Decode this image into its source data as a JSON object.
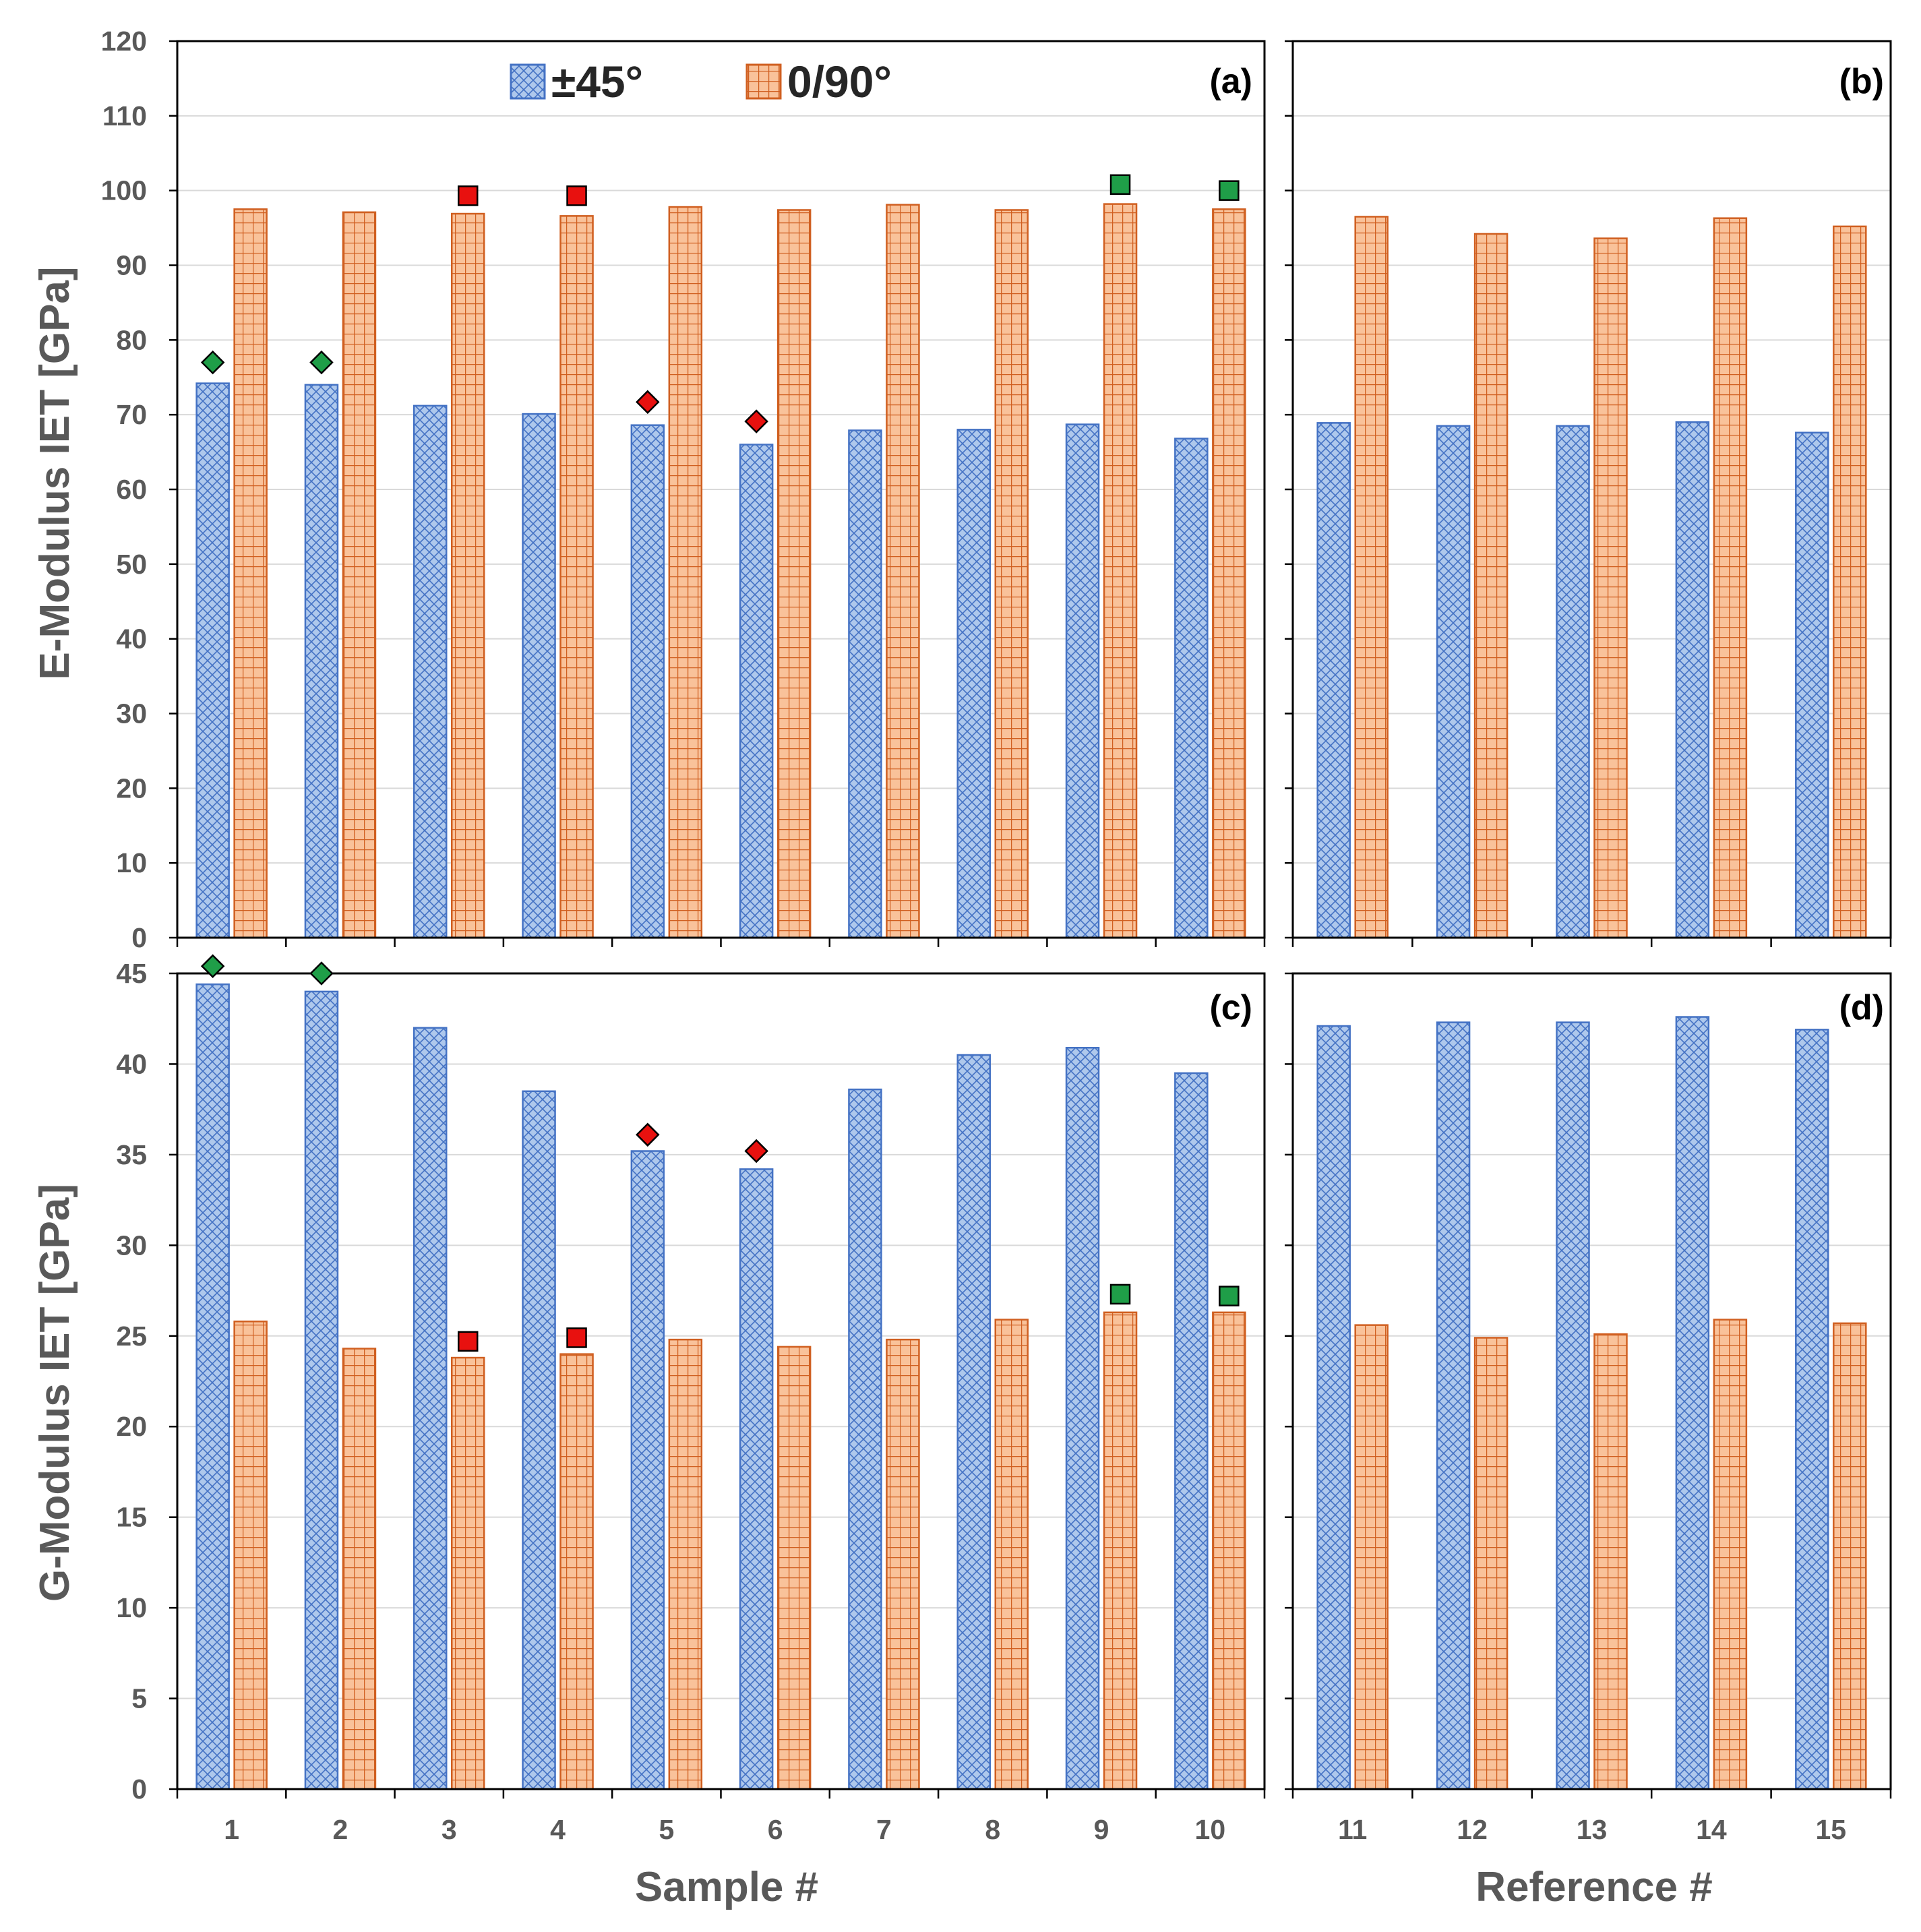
{
  "chart_data": {
    "type": "bar",
    "colors": {
      "pm45_fill": "#aec8ec",
      "pm45_hatch": "#4472c4",
      "p090_fill": "#f9c29a",
      "p090_hatch": "#d05f20",
      "grid": "#d9d9d9",
      "axis": "#000000",
      "marker_green": "#1f9e48",
      "marker_red": "#e8110f"
    },
    "legend": {
      "series_pm45": "±45°",
      "series_0_90": "0/90°",
      "position": "top-center of panel (a)"
    },
    "y_axes": {
      "top": {
        "title": "E-Modulus IET [GPa]",
        "ylim": [
          0,
          120
        ],
        "ticks": [
          "0",
          "10",
          "20",
          "30",
          "40",
          "50",
          "60",
          "70",
          "80",
          "90",
          "100",
          "110",
          "120"
        ]
      },
      "bottom": {
        "title": "G-Modulus IET [GPa]",
        "ylim": [
          0,
          45
        ],
        "ticks": [
          "0",
          "5",
          "10",
          "15",
          "20",
          "25",
          "30",
          "35",
          "40",
          "45"
        ]
      }
    },
    "x_axes": {
      "left": {
        "title": "Sample #",
        "categories": [
          "1",
          "2",
          "3",
          "4",
          "5",
          "6",
          "7",
          "8",
          "9",
          "10"
        ]
      },
      "right": {
        "title": "Reference #",
        "categories": [
          "11",
          "12",
          "13",
          "14",
          "15"
        ]
      }
    },
    "panels": [
      {
        "label": "(a)",
        "x_group": "left",
        "y_group": "top",
        "series": [
          {
            "name": "±45°",
            "values": [
              74.2,
              74.0,
              71.2,
              70.1,
              68.6,
              66.0,
              67.9,
              68.0,
              68.7,
              66.8
            ]
          },
          {
            "name": "0/90°",
            "values": [
              97.5,
              97.1,
              96.9,
              96.6,
              97.8,
              97.4,
              98.1,
              97.4,
              98.2,
              97.5
            ]
          }
        ],
        "markers": [
          {
            "category": "1",
            "series": "±45°",
            "shape": "diamond",
            "color": "green",
            "value": 77.0
          },
          {
            "category": "2",
            "series": "±45°",
            "shape": "diamond",
            "color": "green",
            "value": 77.0
          },
          {
            "category": "5",
            "series": "±45°",
            "shape": "diamond",
            "color": "red",
            "value": 71.7
          },
          {
            "category": "6",
            "series": "±45°",
            "shape": "diamond",
            "color": "red",
            "value": 69.1
          },
          {
            "category": "3",
            "series": "0/90°",
            "shape": "square",
            "color": "red",
            "value": 99.3
          },
          {
            "category": "4",
            "series": "0/90°",
            "shape": "square",
            "color": "red",
            "value": 99.3
          },
          {
            "category": "9",
            "series": "0/90°",
            "shape": "square",
            "color": "green",
            "value": 100.8
          },
          {
            "category": "10",
            "series": "0/90°",
            "shape": "square",
            "color": "green",
            "value": 100.0
          }
        ]
      },
      {
        "label": "(b)",
        "x_group": "right",
        "y_group": "top",
        "series": [
          {
            "name": "±45°",
            "values": [
              68.9,
              68.5,
              68.5,
              69.0,
              67.6
            ]
          },
          {
            "name": "0/90°",
            "values": [
              96.5,
              94.2,
              93.6,
              96.3,
              95.2
            ]
          }
        ],
        "markers": []
      },
      {
        "label": "(c)",
        "x_group": "left",
        "y_group": "bottom",
        "series": [
          {
            "name": "±45°",
            "values": [
              44.4,
              44.0,
              42.0,
              38.5,
              35.2,
              34.2,
              38.6,
              40.5,
              40.9,
              39.5
            ]
          },
          {
            "name": "0/90°",
            "values": [
              25.8,
              24.3,
              23.8,
              24.0,
              24.8,
              24.4,
              24.8,
              25.9,
              26.3,
              26.3
            ]
          }
        ],
        "markers": [
          {
            "category": "1",
            "series": "±45°",
            "shape": "diamond",
            "color": "green",
            "value": 45.4
          },
          {
            "category": "2",
            "series": "±45°",
            "shape": "diamond",
            "color": "green",
            "value": 45.0
          },
          {
            "category": "5",
            "series": "±45°",
            "shape": "diamond",
            "color": "red",
            "value": 36.1
          },
          {
            "category": "6",
            "series": "±45°",
            "shape": "diamond",
            "color": "red",
            "value": 35.2
          },
          {
            "category": "3",
            "series": "0/90°",
            "shape": "square",
            "color": "red",
            "value": 24.7
          },
          {
            "category": "4",
            "series": "0/90°",
            "shape": "square",
            "color": "red",
            "value": 24.9
          },
          {
            "category": "9",
            "series": "0/90°",
            "shape": "square",
            "color": "green",
            "value": 27.3
          },
          {
            "category": "10",
            "series": "0/90°",
            "shape": "square",
            "color": "green",
            "value": 27.2
          }
        ]
      },
      {
        "label": "(d)",
        "x_group": "right",
        "y_group": "bottom",
        "series": [
          {
            "name": "±45°",
            "values": [
              42.1,
              42.3,
              42.3,
              42.6,
              41.9
            ]
          },
          {
            "name": "0/90°",
            "values": [
              25.6,
              24.9,
              25.1,
              25.9,
              25.7
            ]
          }
        ],
        "markers": []
      }
    ]
  }
}
